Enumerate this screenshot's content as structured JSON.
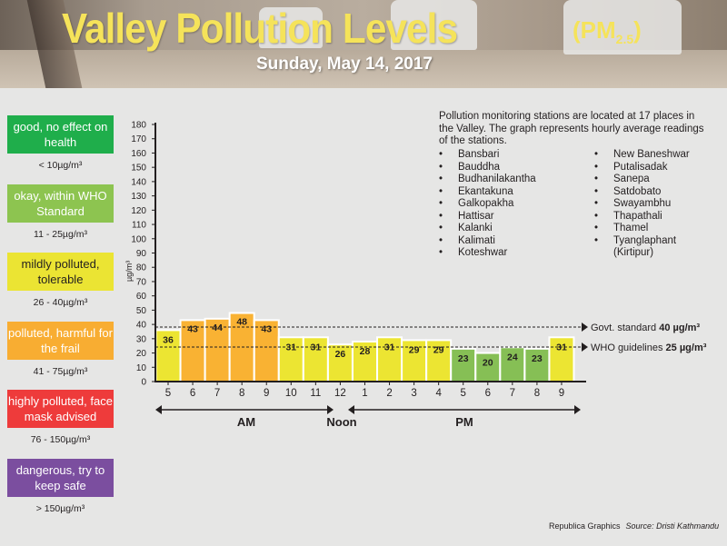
{
  "header": {
    "title": "Valley Pollution Levels",
    "pm_label": "(PM",
    "pm_sub": "2.5",
    "pm_close": ")",
    "date": "Sunday, May 14, 2017"
  },
  "legend": [
    {
      "label": "good, no effect on health",
      "range": "< 10µg/m³",
      "color": "#1fae4b"
    },
    {
      "label": "okay, within WHO Standard",
      "range": "11 - 25µg/m³",
      "color": "#8dc450"
    },
    {
      "label": "mildly polluted, tolerable",
      "range": "26 - 40µg/m³",
      "color": "#ebe433"
    },
    {
      "label": "polluted, harmful for the frail",
      "range": "41 - 75µg/m³",
      "color": "#f8ad32"
    },
    {
      "label": "highly polluted, face mask advised",
      "range": "76 - 150µg/m³",
      "color": "#ee3b3b"
    },
    {
      "label": "dangerous, try to keep safe",
      "range": "> 150µg/m³",
      "color": "#7b4e9f"
    }
  ],
  "info": {
    "text": "Pollution monitoring stations are located at 17 places in the Valley. The graph represents hourly average readings of the stations.",
    "stations_col1": [
      "Bansbari",
      "Bauddha",
      "Budhanilakantha",
      "Ekantakuna",
      "Galkopakha",
      "Hattisar",
      "Kalanki",
      "Kalimati",
      "Koteshwar"
    ],
    "stations_col2": [
      "New Baneshwar",
      "Putalisadak",
      "Sanepa",
      "Satdobato",
      "Swayambhu",
      "Thapathali",
      "Thamel",
      "Tyanglaphant",
      "(Kirtipur)"
    ]
  },
  "chart_data": {
    "type": "bar",
    "ylabel": "µg/m³",
    "ylim": [
      0,
      180
    ],
    "yticks": [
      0,
      10,
      20,
      30,
      40,
      50,
      60,
      70,
      80,
      90,
      100,
      110,
      120,
      130,
      140,
      150,
      160,
      170,
      180
    ],
    "categories": [
      "5",
      "6",
      "7",
      "8",
      "9",
      "10",
      "11",
      "12",
      "1",
      "2",
      "3",
      "4",
      "5",
      "6",
      "7",
      "8",
      "9"
    ],
    "values": [
      36,
      43,
      44,
      48,
      43,
      31,
      31,
      26,
      28,
      31,
      29,
      29,
      23,
      20,
      24,
      23,
      31
    ],
    "periods": {
      "am": "AM",
      "noon": "Noon",
      "pm": "PM"
    },
    "reference_lines": [
      {
        "label": "Govt. standard",
        "value_label": "40 µg/m³",
        "value": 40
      },
      {
        "label": "WHO guidelines",
        "value_label": "25 µg/m³",
        "value": 25
      }
    ],
    "colors": {
      "okay": "#86bf55",
      "mild": "#ece532",
      "polluted": "#f9b233"
    }
  },
  "footer": {
    "credit": "Republica Graphics",
    "source": "Source: Dristi Kathmandu"
  }
}
